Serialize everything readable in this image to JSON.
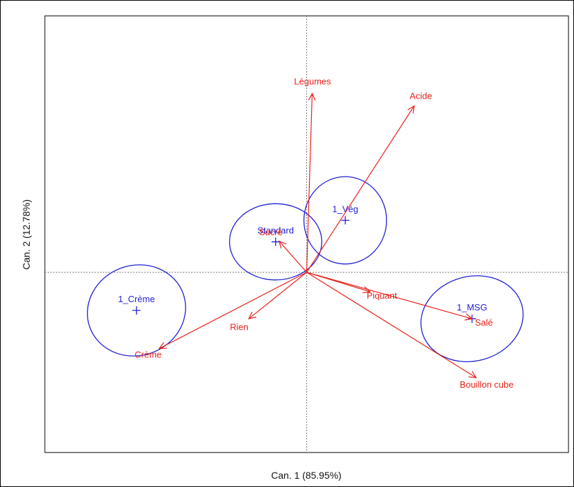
{
  "chart_data": {
    "type": "scatter",
    "title": "",
    "xlabel": "Can. 1 (85.95%)",
    "ylabel": "Can. 2 (12.78%)",
    "xlim": [
      -3.8,
      3.8
    ],
    "ylim": [
      -2.6,
      3.7
    ],
    "grid": false,
    "reference_lines": {
      "x": 0,
      "y": 0
    },
    "colors": {
      "variables": "#e8201a",
      "groups": "#1f1fd6",
      "frame": "#000000",
      "reference": "#777777"
    },
    "variables": [
      {
        "label": "Légumes",
        "x": 0.08,
        "y": 2.58
      },
      {
        "label": "Acide",
        "x": 1.56,
        "y": 2.4
      },
      {
        "label": "Sucré",
        "x": -0.4,
        "y": 0.45
      },
      {
        "label": "Piquant",
        "x": 0.92,
        "y": -0.28
      },
      {
        "label": "Rien",
        "x": -0.84,
        "y": -0.67
      },
      {
        "label": "Crème",
        "x": -2.14,
        "y": -1.1
      },
      {
        "label": "Salé",
        "x": 2.4,
        "y": -0.67
      },
      {
        "label": "Bouillon cube",
        "x": 2.46,
        "y": -1.52
      }
    ],
    "groups": [
      {
        "label": "1_Crème",
        "x": -2.47,
        "y": -0.55,
        "rx": 0.72,
        "ry": 0.65,
        "rotation_deg": 20
      },
      {
        "label": "Standard",
        "x": -0.45,
        "y": 0.44,
        "rx": 0.67,
        "ry": 0.55,
        "rotation_deg": 0
      },
      {
        "label": "1_Vég",
        "x": 0.56,
        "y": 0.75,
        "rx": 0.6,
        "ry": 0.63,
        "rotation_deg": 0
      },
      {
        "label": "1_MSG",
        "x": 2.4,
        "y": -0.67,
        "rx": 0.75,
        "ry": 0.61,
        "rotation_deg": 15
      }
    ]
  }
}
